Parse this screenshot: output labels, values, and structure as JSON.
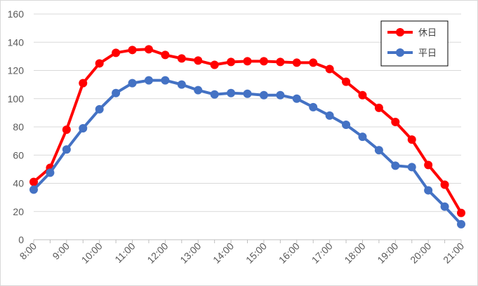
{
  "chart_data": {
    "type": "line",
    "title": "",
    "xlabel": "",
    "ylabel": "",
    "ylim": [
      0,
      160
    ],
    "y_ticks": [
      0,
      20,
      40,
      60,
      80,
      100,
      120,
      140,
      160
    ],
    "x_tick_labels": [
      "8:00",
      "9:00",
      "10:00",
      "11:00",
      "12:00",
      "13:00",
      "14:00",
      "15:00",
      "16:00",
      "17:00",
      "18:00",
      "19:00",
      "20:00",
      "21:00"
    ],
    "x": [
      "8:00",
      "8:30",
      "9:00",
      "9:30",
      "10:00",
      "10:30",
      "11:00",
      "11:30",
      "12:00",
      "12:30",
      "13:00",
      "13:30",
      "14:00",
      "14:30",
      "15:00",
      "15:30",
      "16:00",
      "16:30",
      "17:00",
      "17:30",
      "18:00",
      "18:30",
      "19:00",
      "19:30",
      "20:00",
      "20:30",
      "21:00"
    ],
    "series": [
      {
        "name": "休日",
        "color": "#ff0000",
        "values": [
          41,
          51,
          78,
          111,
          125,
          132.5,
          134.5,
          135,
          131,
          128.5,
          127,
          124,
          126,
          126.5,
          126.5,
          126,
          125.5,
          125.5,
          121,
          112,
          102.5,
          93.5,
          83.5,
          71,
          53,
          39,
          19
        ]
      },
      {
        "name": "平日",
        "color": "#4472c4",
        "values": [
          35.5,
          47.5,
          64,
          79,
          92.5,
          104,
          111,
          113,
          113,
          110,
          106,
          103,
          104,
          103.5,
          102.5,
          102.5,
          100,
          94,
          88,
          81.5,
          73,
          63.5,
          52.5,
          51.5,
          35,
          23.5,
          11
        ]
      }
    ],
    "grid": "horizontal",
    "legend_position": "top-right"
  }
}
